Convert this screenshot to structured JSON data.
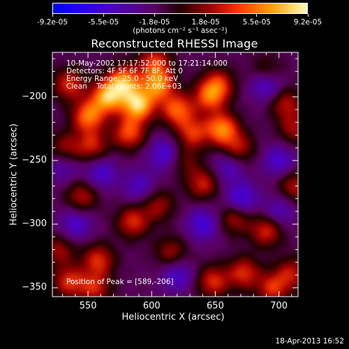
{
  "colorbar": {
    "ticks": [
      "-9.2e-05",
      "-5.5e-05",
      "-1.8e-05",
      "1.8e-05",
      "5.5e-05",
      "9.2e-05"
    ],
    "unit_label": "(photons cm⁻² s⁻¹ asec⁻²)",
    "range": [
      -9.2e-05,
      9.2e-05
    ]
  },
  "annotation": {
    "time": "10-May-2002 17:17:52.000 to 17:21:14.000",
    "detectors": "Detectors: 4F 5F 6F 7F 8F, Att 0",
    "energy": "Energy Range: 25.0 - 50.0 keV",
    "clean": "Clean    Total counts: 2.06E+03",
    "peak": "Position of Peak = [589,-206]"
  },
  "datestamp": "18-Apr-2013 16:52",
  "chart_data": {
    "type": "heatmap",
    "title": "Reconstructed RHESSI Image",
    "xlabel": "Heliocentric X (arcsec)",
    "ylabel": "Heliocentric Y (arcsec)",
    "xlim": [
      522,
      715
    ],
    "ylim": [
      -357,
      -165
    ],
    "xticks": [
      "550",
      "600",
      "650",
      "700"
    ],
    "yticks": [
      "-200",
      "-250",
      "-300",
      "-350"
    ],
    "peak": [
      589,
      -206
    ],
    "sources": [
      {
        "x": 565,
        "y": -200,
        "v": 0.9
      },
      {
        "x": 589,
        "y": -206,
        "v": 1.0
      },
      {
        "x": 578,
        "y": -188,
        "v": 0.85
      },
      {
        "x": 605,
        "y": -190,
        "v": 0.8
      },
      {
        "x": 550,
        "y": -215,
        "v": 0.75
      },
      {
        "x": 535,
        "y": -190,
        "v": 0.55
      },
      {
        "x": 582,
        "y": -228,
        "v": 0.65
      },
      {
        "x": 620,
        "y": -210,
        "v": 0.7
      },
      {
        "x": 632,
        "y": -228,
        "v": 0.55
      },
      {
        "x": 655,
        "y": -225,
        "v": 0.8
      },
      {
        "x": 645,
        "y": -200,
        "v": 0.6
      },
      {
        "x": 668,
        "y": -240,
        "v": 0.45
      },
      {
        "x": 652,
        "y": -190,
        "v": 0.55
      },
      {
        "x": 705,
        "y": -205,
        "v": 0.45
      },
      {
        "x": 712,
        "y": -225,
        "v": 0.4
      },
      {
        "x": 532,
        "y": -240,
        "v": 0.4
      },
      {
        "x": 553,
        "y": -238,
        "v": 0.5
      },
      {
        "x": 545,
        "y": -278,
        "v": 0.45
      },
      {
        "x": 585,
        "y": -298,
        "v": 0.55
      },
      {
        "x": 605,
        "y": -285,
        "v": 0.4
      },
      {
        "x": 640,
        "y": -268,
        "v": 0.5
      },
      {
        "x": 665,
        "y": -295,
        "v": 0.45
      },
      {
        "x": 690,
        "y": -305,
        "v": 0.55
      },
      {
        "x": 712,
        "y": -270,
        "v": 0.45
      },
      {
        "x": 527,
        "y": -320,
        "v": 0.4
      },
      {
        "x": 558,
        "y": -328,
        "v": 0.55
      },
      {
        "x": 615,
        "y": -322,
        "v": 0.4
      },
      {
        "x": 535,
        "y": -345,
        "v": 0.55
      },
      {
        "x": 555,
        "y": -350,
        "v": 0.5
      },
      {
        "x": 648,
        "y": -345,
        "v": 0.55
      },
      {
        "x": 672,
        "y": -338,
        "v": 0.55
      },
      {
        "x": 695,
        "y": -350,
        "v": 0.55
      },
      {
        "x": 710,
        "y": -338,
        "v": 0.45
      },
      {
        "x": 625,
        "y": -250,
        "v": 0.3
      },
      {
        "x": 602,
        "y": -172,
        "v": 0.55
      },
      {
        "x": 690,
        "y": -180,
        "v": 0.35
      }
    ],
    "negatives": [
      {
        "x": 690,
        "y": -190,
        "v": -0.5
      },
      {
        "x": 700,
        "y": -250,
        "v": -0.4
      },
      {
        "x": 670,
        "y": -280,
        "v": -0.5
      },
      {
        "x": 640,
        "y": -300,
        "v": -0.45
      },
      {
        "x": 590,
        "y": -270,
        "v": -0.35
      },
      {
        "x": 560,
        "y": -260,
        "v": -0.4
      },
      {
        "x": 540,
        "y": -300,
        "v": -0.4
      },
      {
        "x": 610,
        "y": -245,
        "v": -0.45
      },
      {
        "x": 660,
        "y": -255,
        "v": -0.35
      },
      {
        "x": 620,
        "y": -340,
        "v": -0.4
      },
      {
        "x": 700,
        "y": -290,
        "v": -0.35
      },
      {
        "x": 530,
        "y": -255,
        "v": -0.3
      }
    ]
  }
}
